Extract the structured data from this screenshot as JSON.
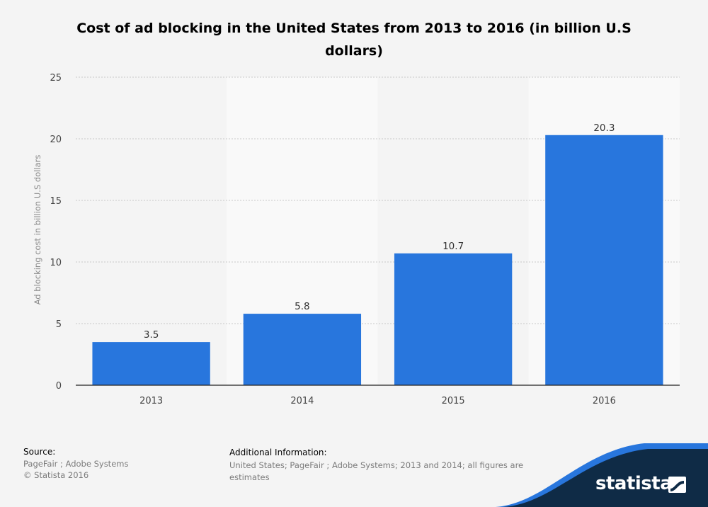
{
  "chart_data": {
    "type": "bar",
    "title": "Cost of ad blocking in the United States from 2013 to 2016 (in billion U.S dollars)",
    "xlabel": "",
    "ylabel": "Ad blocking cost in billion U.S dollars",
    "categories": [
      "2013",
      "2014",
      "2015",
      "2016"
    ],
    "values": [
      3.5,
      5.8,
      10.7,
      20.3
    ],
    "data_labels": [
      "3.5",
      "5.8",
      "10.7",
      "20.3"
    ],
    "ylim": [
      0,
      25
    ],
    "yticks": [
      0,
      5,
      10,
      15,
      20,
      25
    ],
    "grid": true,
    "legend": "none",
    "bar_color": "#2876dd"
  },
  "footer": {
    "source_label": "Source:",
    "source_lines": [
      "PageFair ; Adobe Systems",
      "© Statista 2016"
    ],
    "additional_label": "Additional Information:",
    "additional_text": "United States; PageFair ; Adobe Systems; 2013 and 2014; all figures are estimates"
  },
  "brand": {
    "name": "statista",
    "logo_icon": "statista-logo-icon",
    "colors": {
      "wave": "#2876dd",
      "dark": "#0f2b46"
    }
  }
}
